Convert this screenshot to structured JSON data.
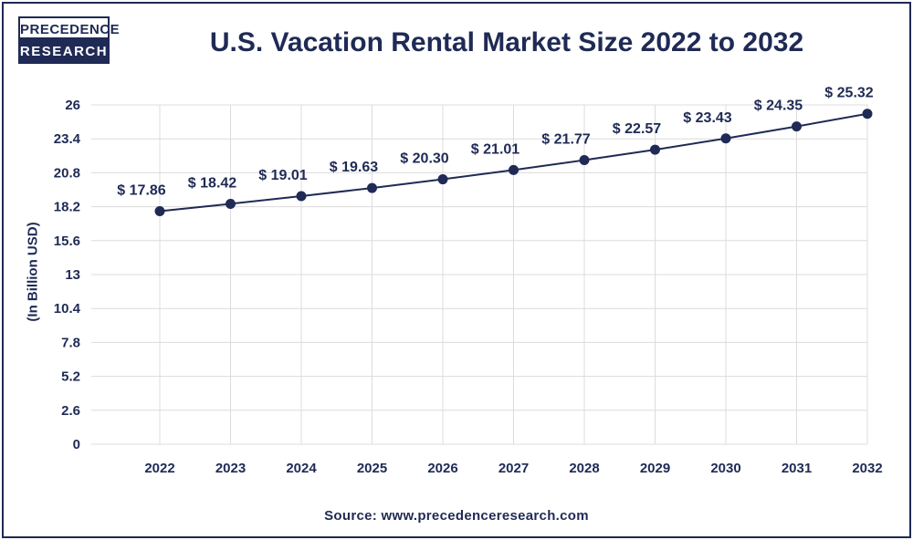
{
  "logo": {
    "line1": "PRECEDENCE",
    "line2": "RESEARCH"
  },
  "source": "Source: www.precedenceresearch.com",
  "colors": {
    "primary": "#1f2a55",
    "grid": "#dcdcdc"
  },
  "chart_data": {
    "type": "line",
    "title": "U.S. Vacation Rental Market Size 2022 to 2032",
    "xlabel": "",
    "ylabel": "(In Billion USD)",
    "categories": [
      "2022",
      "2023",
      "2024",
      "2025",
      "2026",
      "2027",
      "2028",
      "2029",
      "2030",
      "2031",
      "2032"
    ],
    "series": [
      {
        "values": [
          17.86,
          18.42,
          19.01,
          19.63,
          20.3,
          21.01,
          21.77,
          22.57,
          23.43,
          24.35,
          25.32
        ],
        "labels": [
          "$ 17.86",
          "$ 18.42",
          "$ 19.01",
          "$ 19.63",
          "$ 20.30",
          "$ 21.01",
          "$ 21.77",
          "$ 22.57",
          "$ 23.43",
          "$ 24.35",
          "$ 25.32"
        ]
      }
    ],
    "yticks": [
      "0",
      "2.6",
      "5.2",
      "7.8",
      "10.4",
      "13",
      "15.6",
      "18.2",
      "20.8",
      "23.4",
      "26"
    ],
    "ylim": [
      0,
      26
    ],
    "grid": true,
    "legend": "none"
  }
}
